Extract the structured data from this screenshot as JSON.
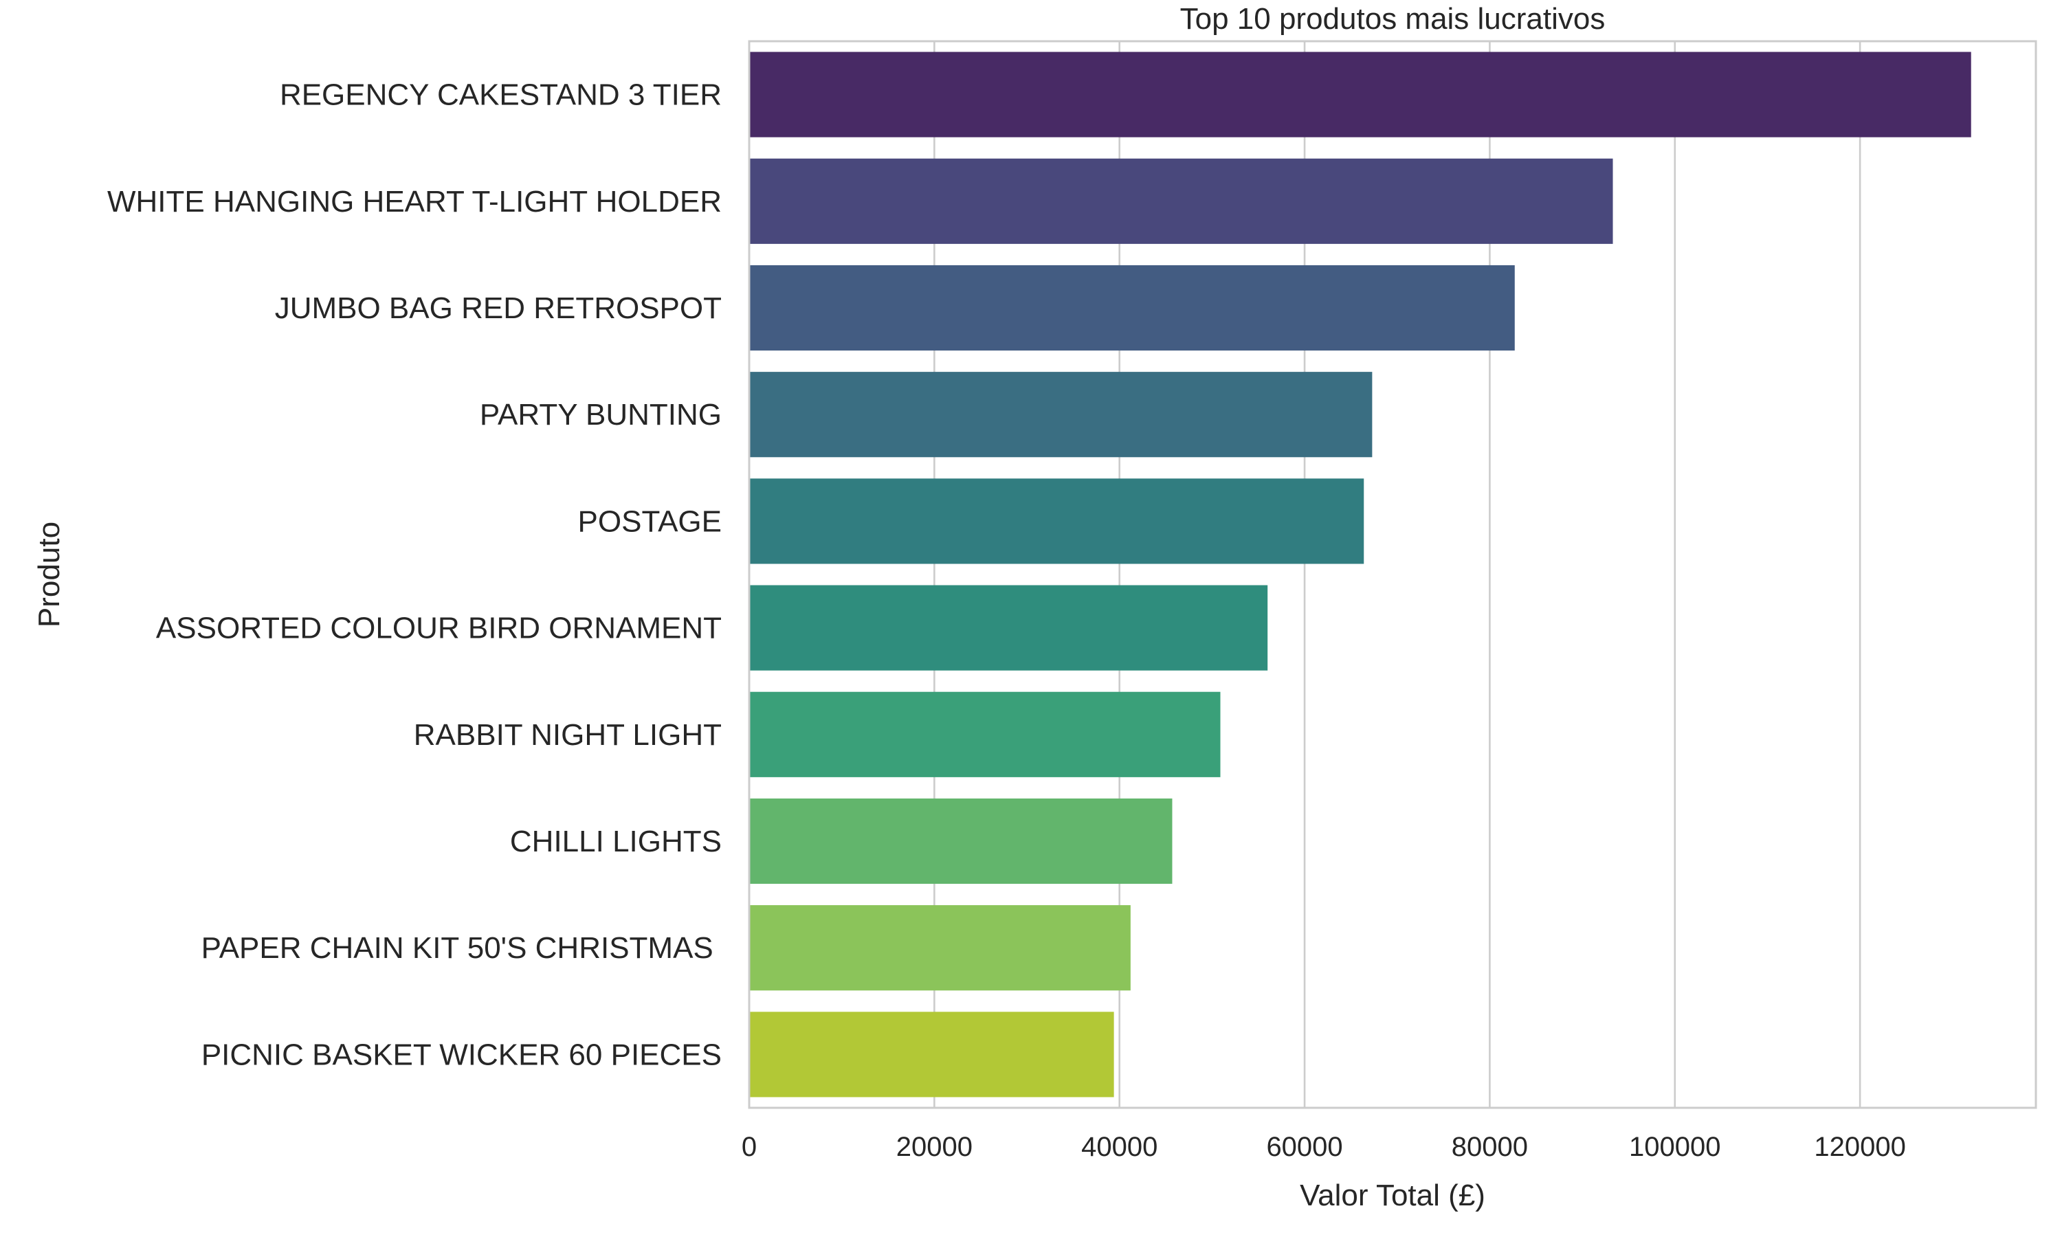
{
  "chart_data": {
    "type": "bar",
    "orientation": "horizontal",
    "title": "Top 10 produtos mais lucrativos",
    "xlabel": "Valor Total (£)",
    "ylabel": "Produto",
    "xlim": [
      0,
      139000
    ],
    "xticks": [
      0,
      20000,
      40000,
      60000,
      80000,
      100000,
      120000
    ],
    "grid": true,
    "categories": [
      "REGENCY CAKESTAND 3 TIER",
      "WHITE HANGING HEART T-LIGHT HOLDER",
      "JUMBO BAG RED RETROSPOT",
      "PARTY BUNTING",
      "POSTAGE",
      "ASSORTED COLOUR BIRD ORNAMENT",
      "RABBIT NIGHT LIGHT",
      "CHILLI LIGHTS",
      "PAPER CHAIN KIT 50'S CHRISTMAS ",
      "PICNIC BASKET WICKER 60 PIECES"
    ],
    "values": [
      132000,
      93300,
      82700,
      67300,
      66400,
      56000,
      50900,
      45700,
      41200,
      39400
    ],
    "colors": [
      "#482a65",
      "#49487c",
      "#435c82",
      "#3a6e82",
      "#317d80",
      "#2f8d7d",
      "#3aa079",
      "#62b56c",
      "#8bc45a",
      "#b2c836"
    ]
  }
}
